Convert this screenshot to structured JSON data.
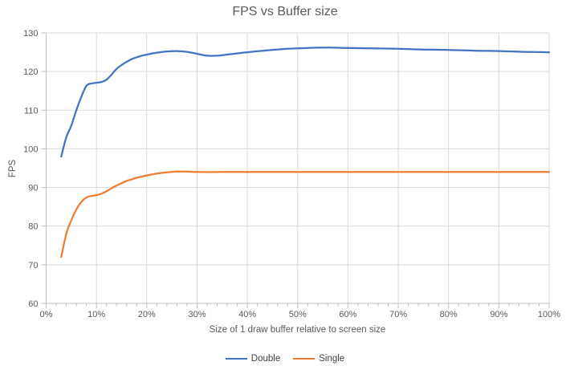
{
  "chart": {
    "title": "FPS vs Buffer size",
    "x_axis_title": "Size of 1 draw buffer relative to screen size",
    "y_axis_title": "FPS",
    "legend_items": [
      {
        "label": "Double",
        "color": "#4472C4"
      },
      {
        "label": "Single",
        "color": "#ED7D31"
      }
    ],
    "colors": {
      "gridline": "#D9D9D9",
      "axis_line": "#BFBFBF",
      "text": "#595959",
      "series_double": "#4472C4",
      "series_single": "#ED7D31"
    }
  },
  "chart_data": {
    "type": "line",
    "title": "FPS vs Buffer size",
    "xlabel": "Size of 1 draw buffer relative to screen size",
    "ylabel": "FPS",
    "xlim": [
      0,
      100
    ],
    "ylim": [
      60,
      130
    ],
    "x_major_step": 10,
    "x_minor_step": 2,
    "y_major_step": 10,
    "x_tick_labels": [
      "0%",
      "10%",
      "20%",
      "30%",
      "40%",
      "50%",
      "60%",
      "70%",
      "80%",
      "90%",
      "100%"
    ],
    "y_tick_labels": [
      "60",
      "70",
      "80",
      "90",
      "100",
      "110",
      "120",
      "130"
    ],
    "grid": true,
    "legend_position": "bottom",
    "series": [
      {
        "name": "Double",
        "color": "#4472C4",
        "points": [
          [
            3,
            98
          ],
          [
            4,
            103
          ],
          [
            5,
            106
          ],
          [
            6,
            110
          ],
          [
            7,
            113.5
          ],
          [
            8,
            116.3
          ],
          [
            9,
            116.9
          ],
          [
            10,
            117.1
          ],
          [
            11,
            117.3
          ],
          [
            12,
            117.9
          ],
          [
            13,
            119.2
          ],
          [
            14,
            120.7
          ],
          [
            15,
            121.7
          ],
          [
            16,
            122.5
          ],
          [
            17,
            123.2
          ],
          [
            18,
            123.7
          ],
          [
            19,
            124.1
          ],
          [
            20,
            124.4
          ],
          [
            22,
            124.9
          ],
          [
            24,
            125.2
          ],
          [
            26,
            125.3
          ],
          [
            28,
            125.1
          ],
          [
            30,
            124.6
          ],
          [
            32,
            124.1
          ],
          [
            34,
            124.1
          ],
          [
            36,
            124.4
          ],
          [
            38,
            124.7
          ],
          [
            40,
            125
          ],
          [
            44,
            125.5
          ],
          [
            48,
            125.9
          ],
          [
            52,
            126.1
          ],
          [
            56,
            126.2
          ],
          [
            60,
            126.1
          ],
          [
            65,
            126
          ],
          [
            70,
            125.9
          ],
          [
            75,
            125.7
          ],
          [
            80,
            125.6
          ],
          [
            85,
            125.4
          ],
          [
            90,
            125.3
          ],
          [
            95,
            125.1
          ],
          [
            100,
            125
          ]
        ]
      },
      {
        "name": "Single",
        "color": "#ED7D31",
        "points": [
          [
            3,
            72
          ],
          [
            4,
            78
          ],
          [
            5,
            81.5
          ],
          [
            6,
            84.3
          ],
          [
            7,
            86.3
          ],
          [
            8,
            87.4
          ],
          [
            9,
            87.8
          ],
          [
            10,
            88
          ],
          [
            11,
            88.4
          ],
          [
            12,
            89
          ],
          [
            13,
            89.8
          ],
          [
            14,
            90.5
          ],
          [
            15,
            91.1
          ],
          [
            16,
            91.7
          ],
          [
            17,
            92.1
          ],
          [
            18,
            92.5
          ],
          [
            19,
            92.8
          ],
          [
            20,
            93.1
          ],
          [
            22,
            93.6
          ],
          [
            24,
            93.9
          ],
          [
            26,
            94.1
          ],
          [
            28,
            94.1
          ],
          [
            30,
            94
          ],
          [
            35,
            94
          ],
          [
            40,
            94
          ],
          [
            50,
            94
          ],
          [
            60,
            94
          ],
          [
            70,
            94
          ],
          [
            80,
            94
          ],
          [
            90,
            94
          ],
          [
            100,
            94
          ]
        ]
      }
    ]
  }
}
